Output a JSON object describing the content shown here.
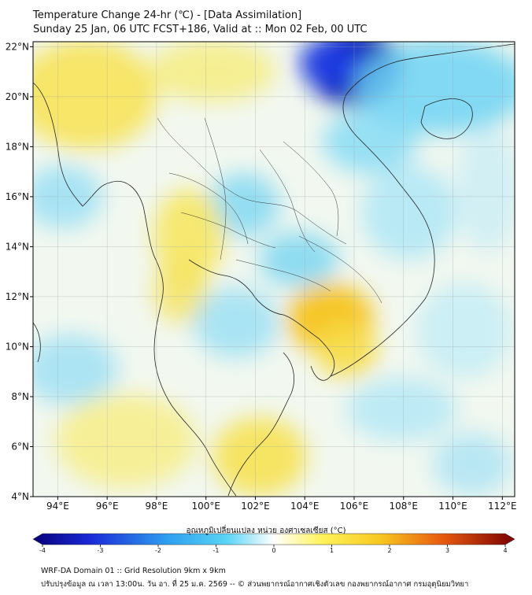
{
  "title": {
    "line1": "Temperature Change 24-hr (℃) - [Data Assimilation]",
    "line2": "Sunday 25 Jan, 06 UTC FCST+186, Valid at :: Mon 02 Feb, 00 UTC"
  },
  "map": {
    "lon_range": [
      93,
      112.5
    ],
    "lat_range": [
      4,
      22.2
    ],
    "lat_ticks": [
      "22°N",
      "20°N",
      "18°N",
      "16°N",
      "14°N",
      "12°N",
      "10°N",
      "8°N",
      "6°N",
      "4°N"
    ],
    "lat_values": [
      22,
      20,
      18,
      16,
      14,
      12,
      10,
      8,
      6,
      4
    ],
    "lon_ticks": [
      "94°E",
      "96°E",
      "98°E",
      "100°E",
      "102°E",
      "104°E",
      "106°E",
      "108°E",
      "110°E",
      "112°E"
    ],
    "lon_values": [
      94,
      96,
      98,
      100,
      102,
      104,
      106,
      108,
      110,
      112
    ],
    "grid": true
  },
  "colorbar": {
    "label": "อุณหภูมิเปลี่ยนแปลง หน่วย องศาเซลเซียส (°C)",
    "ticks": [
      "-4",
      "-3",
      "-2",
      "-1",
      "0",
      "1",
      "2",
      "3",
      "4"
    ],
    "tick_values": [
      -4,
      -3,
      -2,
      -1,
      0,
      1,
      2,
      3,
      4
    ],
    "range": [
      -4,
      4
    ]
  },
  "footer": {
    "line1": "WRF-DA Domain 01 :: Grid Resolution 9km x 9km",
    "line2": "ปรับปรุงข้อมูล ณ เวลา 13:00น. วัน อา. ที่ 25 ม.ค. 2569 -- © ส่วนพยากรณ์อากาศเชิงตัวเลข กองพยากรณ์อากาศ กรมอุตุนิยมวิทยา"
  },
  "colors": {
    "cold_strong": "#0a1fb0",
    "cold": "#3fc7f0",
    "neutral": "#eef6fb",
    "warm": "#f7e94a",
    "warm_strong": "#f4a21a",
    "hot": "#b01010"
  }
}
